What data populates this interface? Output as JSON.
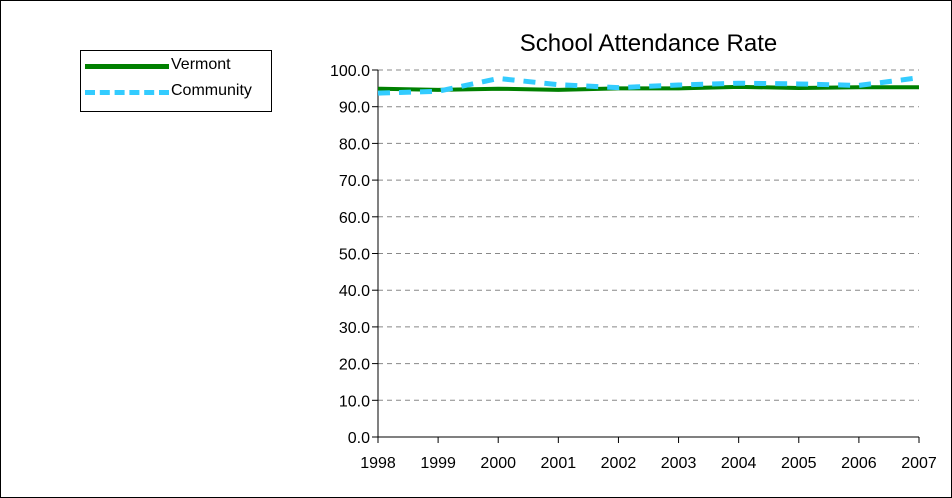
{
  "chart_data": {
    "type": "line",
    "title": "School Attendance Rate",
    "xlabel": "",
    "ylabel": "",
    "x": [
      "1998",
      "1999",
      "2000",
      "2001",
      "2002",
      "2003",
      "2004",
      "2005",
      "2006",
      "2007"
    ],
    "ylim": [
      0,
      100
    ],
    "yticks": [
      "0.0",
      "10.0",
      "20.0",
      "30.0",
      "40.0",
      "50.0",
      "60.0",
      "70.0",
      "80.0",
      "90.0",
      "100.0"
    ],
    "grid": "horizontal-dashed",
    "legend_position": "top-left",
    "series": [
      {
        "name": "Vermont",
        "values": [
          94.9,
          94.6,
          94.9,
          94.6,
          95.0,
          95.0,
          95.4,
          95.1,
          95.3,
          95.3
        ],
        "color": "#008000",
        "style": "solid"
      },
      {
        "name": "Community",
        "values": [
          93.7,
          94.2,
          97.7,
          96.0,
          95.2,
          95.9,
          96.4,
          96.2,
          95.8,
          97.9
        ],
        "color": "#33CCFF",
        "style": "dashed"
      }
    ]
  }
}
